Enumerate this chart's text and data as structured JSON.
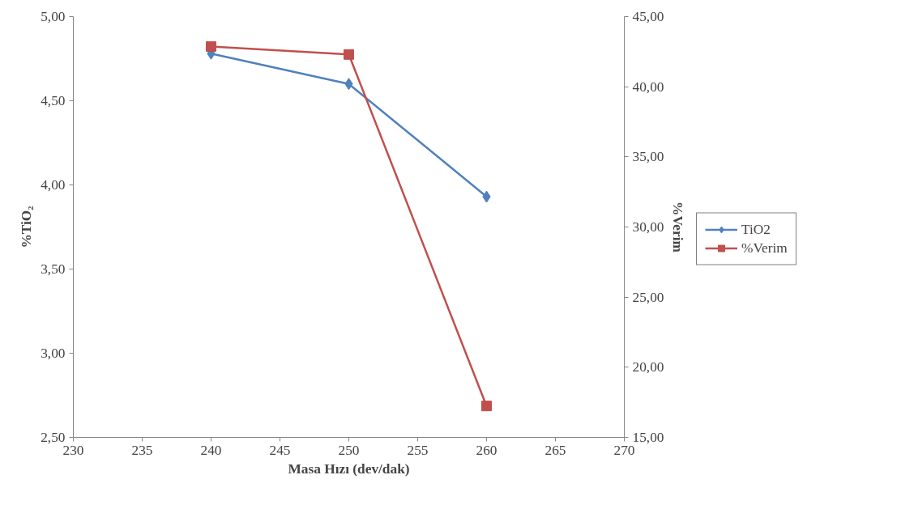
{
  "chart_data": {
    "type": "line",
    "xlabel": "Masa Hızı (dev/dak)",
    "ylabel": "%TiO₂",
    "y2label": "%Verim",
    "x": [
      240,
      250,
      260
    ],
    "series": [
      {
        "name": "TiO2",
        "color": "#4f81bd",
        "values": [
          4.78,
          4.6,
          3.93
        ],
        "marker": "diamond"
      },
      {
        "name": "%Verim",
        "color": "#c0504d",
        "values": [
          42.87,
          42.3,
          17.24
        ],
        "marker": "square",
        "axis": "y2"
      }
    ],
    "xlim": [
      230,
      270
    ],
    "xticks": [
      230,
      235,
      240,
      245,
      250,
      255,
      260,
      265,
      270
    ],
    "ylim": [
      2.5,
      5.0
    ],
    "yticks": [
      {
        "value": 2.5,
        "label": "2,50"
      },
      {
        "value": 3.0,
        "label": "3,00"
      },
      {
        "value": 3.5,
        "label": "3,50"
      },
      {
        "value": 4.0,
        "label": "4,00"
      },
      {
        "value": 4.5,
        "label": "4,50"
      },
      {
        "value": 5.0,
        "label": "5,00"
      }
    ],
    "y2lim": [
      15,
      45
    ],
    "y2ticks": [
      {
        "value": 15,
        "label": "15,00"
      },
      {
        "value": 20,
        "label": "20,00"
      },
      {
        "value": 25,
        "label": "25,00"
      },
      {
        "value": 30,
        "label": "30,00"
      },
      {
        "value": 35,
        "label": "35,00"
      },
      {
        "value": 40,
        "label": "40,00"
      },
      {
        "value": 45,
        "label": "45,00"
      }
    ],
    "grid": false,
    "legend": "right",
    "line_style": "solid"
  }
}
